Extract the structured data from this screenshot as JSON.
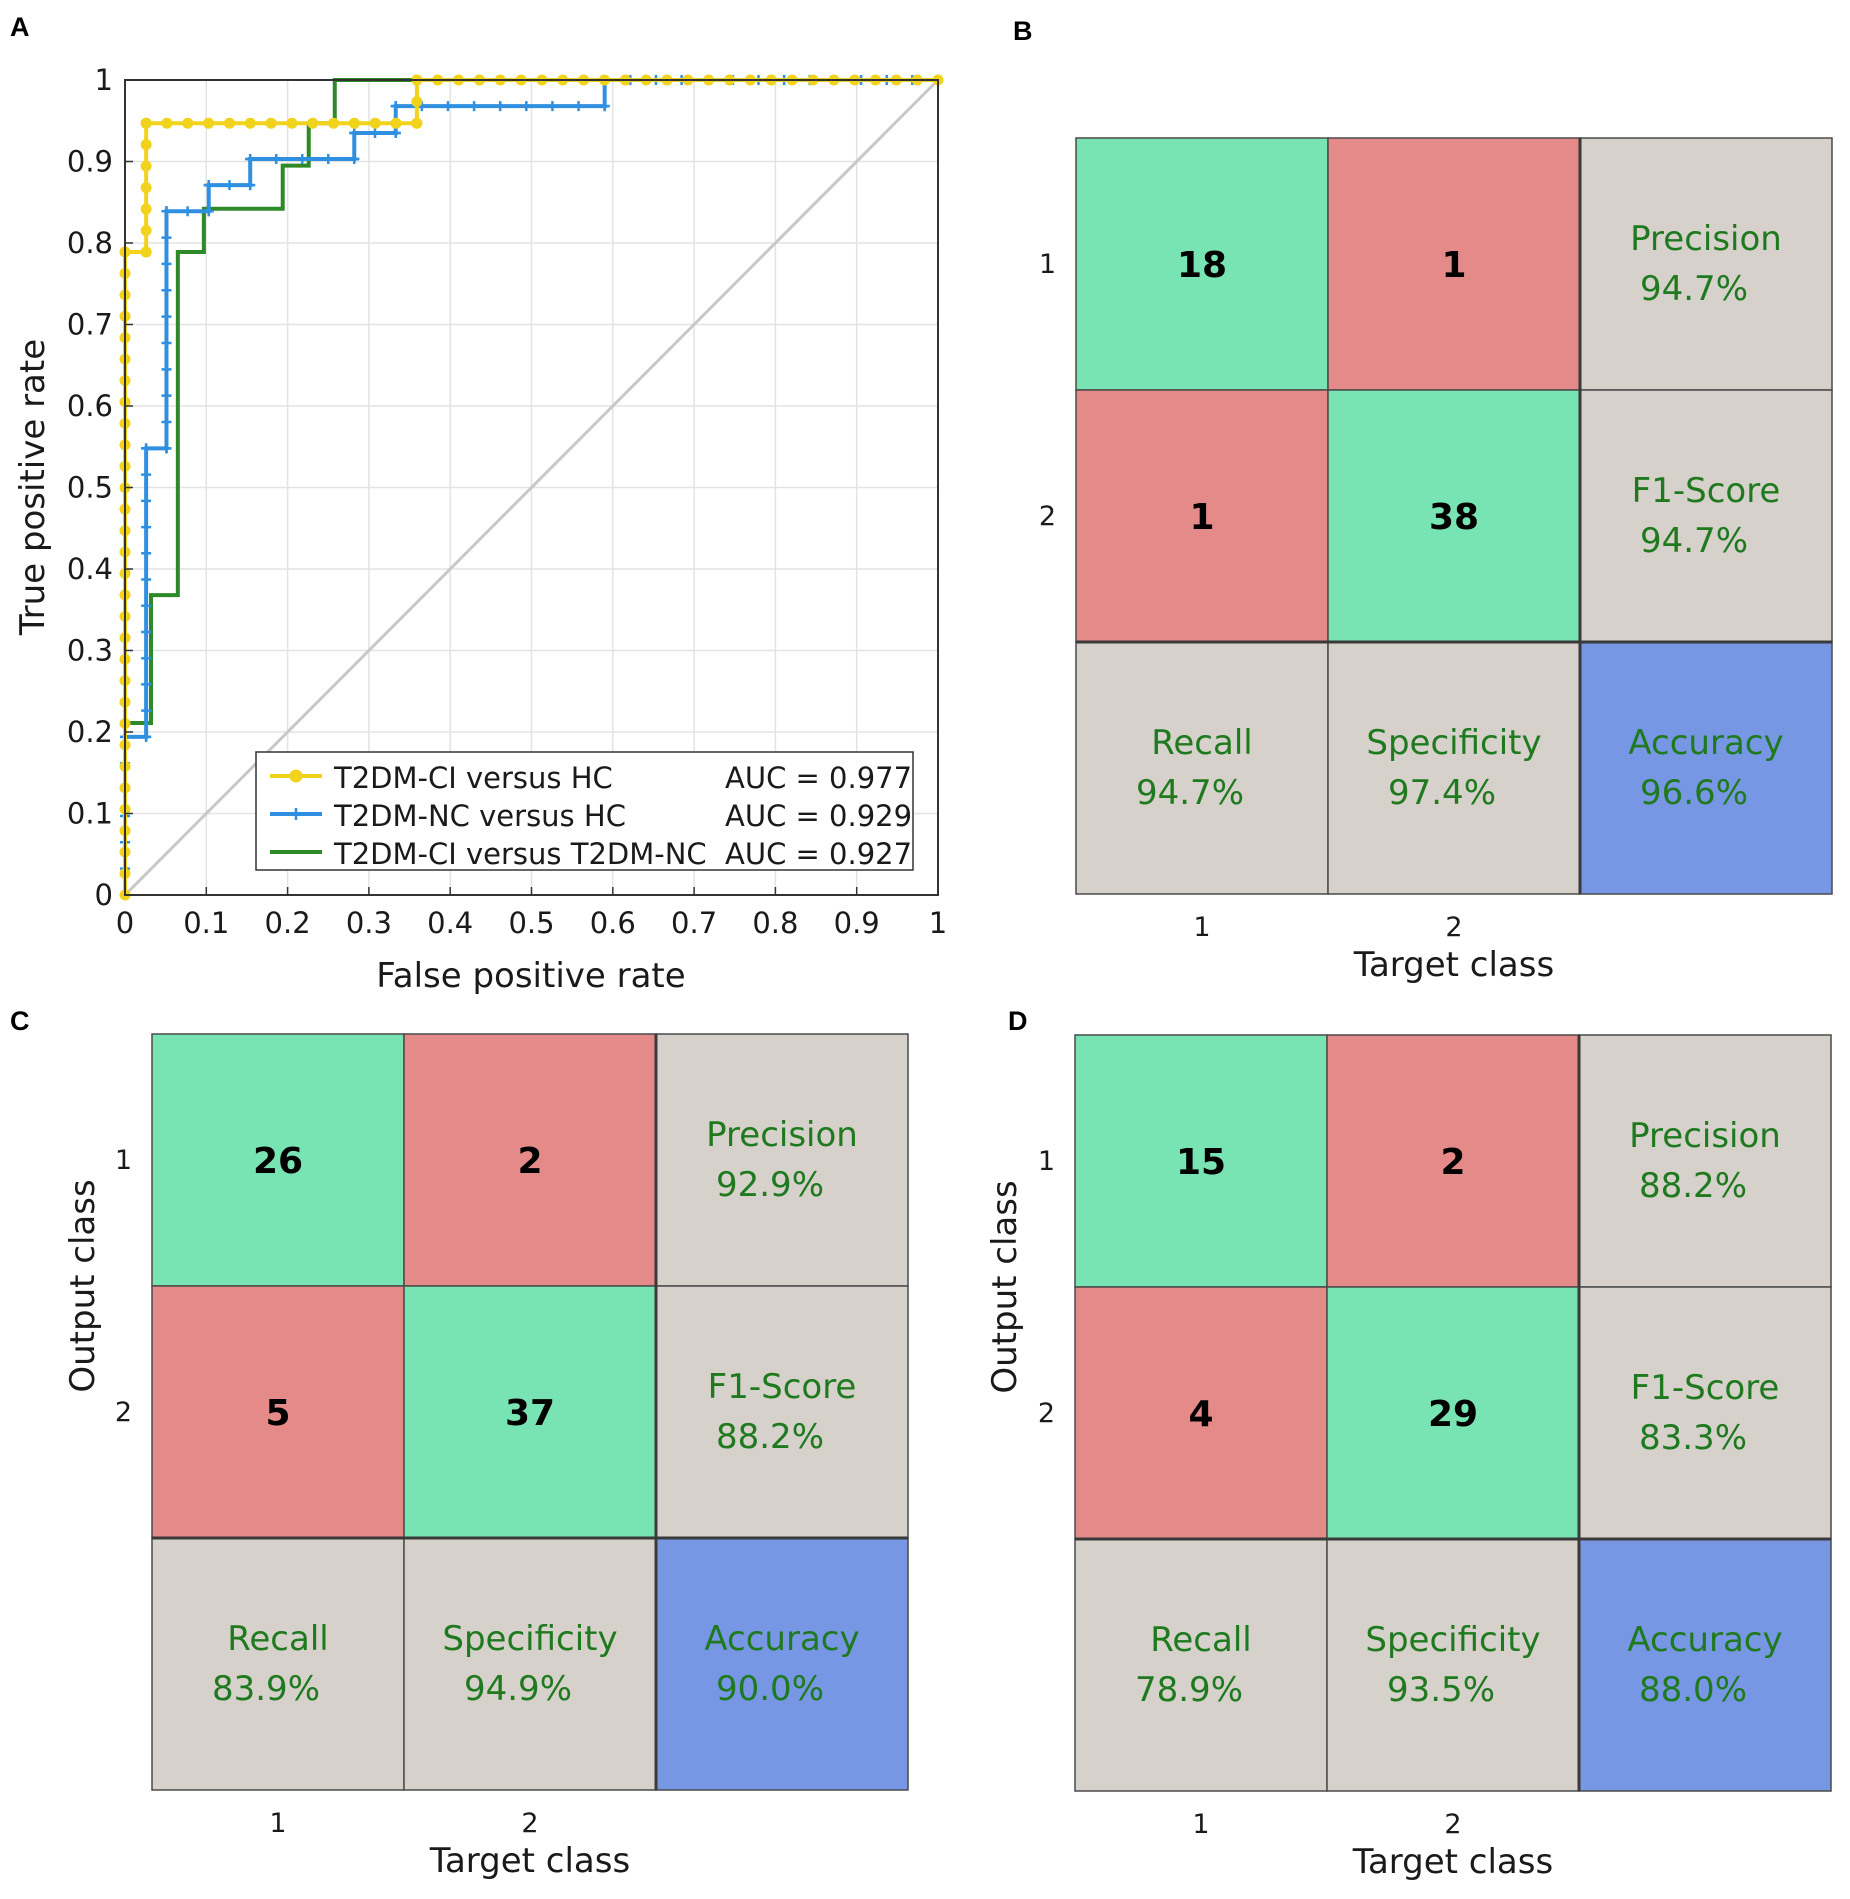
{
  "panels": {
    "a": "A",
    "b": "B",
    "c": "C",
    "d": "D"
  },
  "chart_data": [
    {
      "type": "line",
      "panel": "A",
      "xlabel": "False positive rate",
      "ylabel": "True positive rate",
      "xlim": [
        0,
        1
      ],
      "ylim": [
        0,
        1
      ],
      "xticks": [
        0,
        0.1,
        0.2,
        0.3,
        0.4,
        0.5,
        0.6,
        0.7,
        0.8,
        0.9,
        1
      ],
      "yticks": [
        0,
        0.1,
        0.2,
        0.3,
        0.4,
        0.5,
        0.6,
        0.7,
        0.8,
        0.9,
        1
      ],
      "grid": true,
      "legend_position": "bottom-right",
      "diagonal": {
        "color": "#c8c8c8"
      },
      "series": [
        {
          "name": "T2DM-CI versus HC",
          "auc_label": "AUC = 0.977",
          "color": "#f2d31b",
          "marker": "circle",
          "x": [
            0,
            0,
            0.026,
            0.026,
            0.359,
            0.359,
            1
          ],
          "y": [
            0,
            0.789,
            0.789,
            0.947,
            0.947,
            1,
            1
          ]
        },
        {
          "name": "T2DM-NC versus HC",
          "auc_label": "AUC = 0.929",
          "color": "#2f8fe0",
          "marker": "plus",
          "x": [
            0,
            0,
            0.026,
            0.026,
            0.051,
            0.051,
            0.103,
            0.103,
            0.154,
            0.154,
            0.282,
            0.282,
            0.333,
            0.333,
            0.59,
            0.59,
            1
          ],
          "y": [
            0,
            0.194,
            0.194,
            0.548,
            0.548,
            0.839,
            0.839,
            0.871,
            0.871,
            0.903,
            0.903,
            0.935,
            0.935,
            0.968,
            0.968,
            1,
            1
          ]
        },
        {
          "name": "T2DM-CI versus T2DM-NC",
          "auc_label": "AUC = 0.927",
          "color": "#2e8a28",
          "marker": "none",
          "x": [
            0,
            0,
            0.032,
            0.032,
            0.065,
            0.065,
            0.097,
            0.097,
            0.194,
            0.194,
            0.226,
            0.226,
            0.258,
            0.258,
            1
          ],
          "y": [
            0,
            0.211,
            0.211,
            0.368,
            0.368,
            0.789,
            0.789,
            0.842,
            0.842,
            0.895,
            0.895,
            0.947,
            0.947,
            1,
            1
          ]
        }
      ]
    },
    {
      "type": "table",
      "panel": "B",
      "xlabel": "Target class",
      "ylabel": "",
      "class_labels": [
        "1",
        "2"
      ],
      "matrix": [
        [
          18,
          1
        ],
        [
          1,
          38
        ]
      ],
      "precision": {
        "label": "Precision",
        "value": "94.7%"
      },
      "f1": {
        "label": "F1-Score",
        "value": "94.7%"
      },
      "recall": {
        "label": "Recall",
        "value": "94.7%"
      },
      "specificity": {
        "label": "Specificity",
        "value": "97.4%"
      },
      "accuracy": {
        "label": "Accuracy",
        "value": "96.6%"
      }
    },
    {
      "type": "table",
      "panel": "C",
      "xlabel": "Target class",
      "ylabel": "Output class",
      "class_labels": [
        "1",
        "2"
      ],
      "matrix": [
        [
          26,
          2
        ],
        [
          5,
          37
        ]
      ],
      "precision": {
        "label": "Precision",
        "value": "92.9%"
      },
      "f1": {
        "label": "F1-Score",
        "value": "88.2%"
      },
      "recall": {
        "label": "Recall",
        "value": "83.9%"
      },
      "specificity": {
        "label": "Specificity",
        "value": "94.9%"
      },
      "accuracy": {
        "label": "Accuracy",
        "value": "90.0%"
      }
    },
    {
      "type": "table",
      "panel": "D",
      "xlabel": "Target class",
      "ylabel": "Output class",
      "class_labels": [
        "1",
        "2"
      ],
      "matrix": [
        [
          15,
          2
        ],
        [
          4,
          29
        ]
      ],
      "precision": {
        "label": "Precision",
        "value": "88.2%"
      },
      "f1": {
        "label": "F1-Score",
        "value": "83.3%"
      },
      "recall": {
        "label": "Recall",
        "value": "78.9%"
      },
      "specificity": {
        "label": "Specificity",
        "value": "93.5%"
      },
      "accuracy": {
        "label": "Accuracy",
        "value": "88.0%"
      }
    }
  ],
  "colors": {
    "correct": "#79e4b3",
    "error": "#e48b89",
    "metric_cell": "#d6d1cb",
    "accuracy_cell": "#7796e4",
    "metric_text": "#1f7a1f",
    "grid": "#e3e3e3"
  }
}
